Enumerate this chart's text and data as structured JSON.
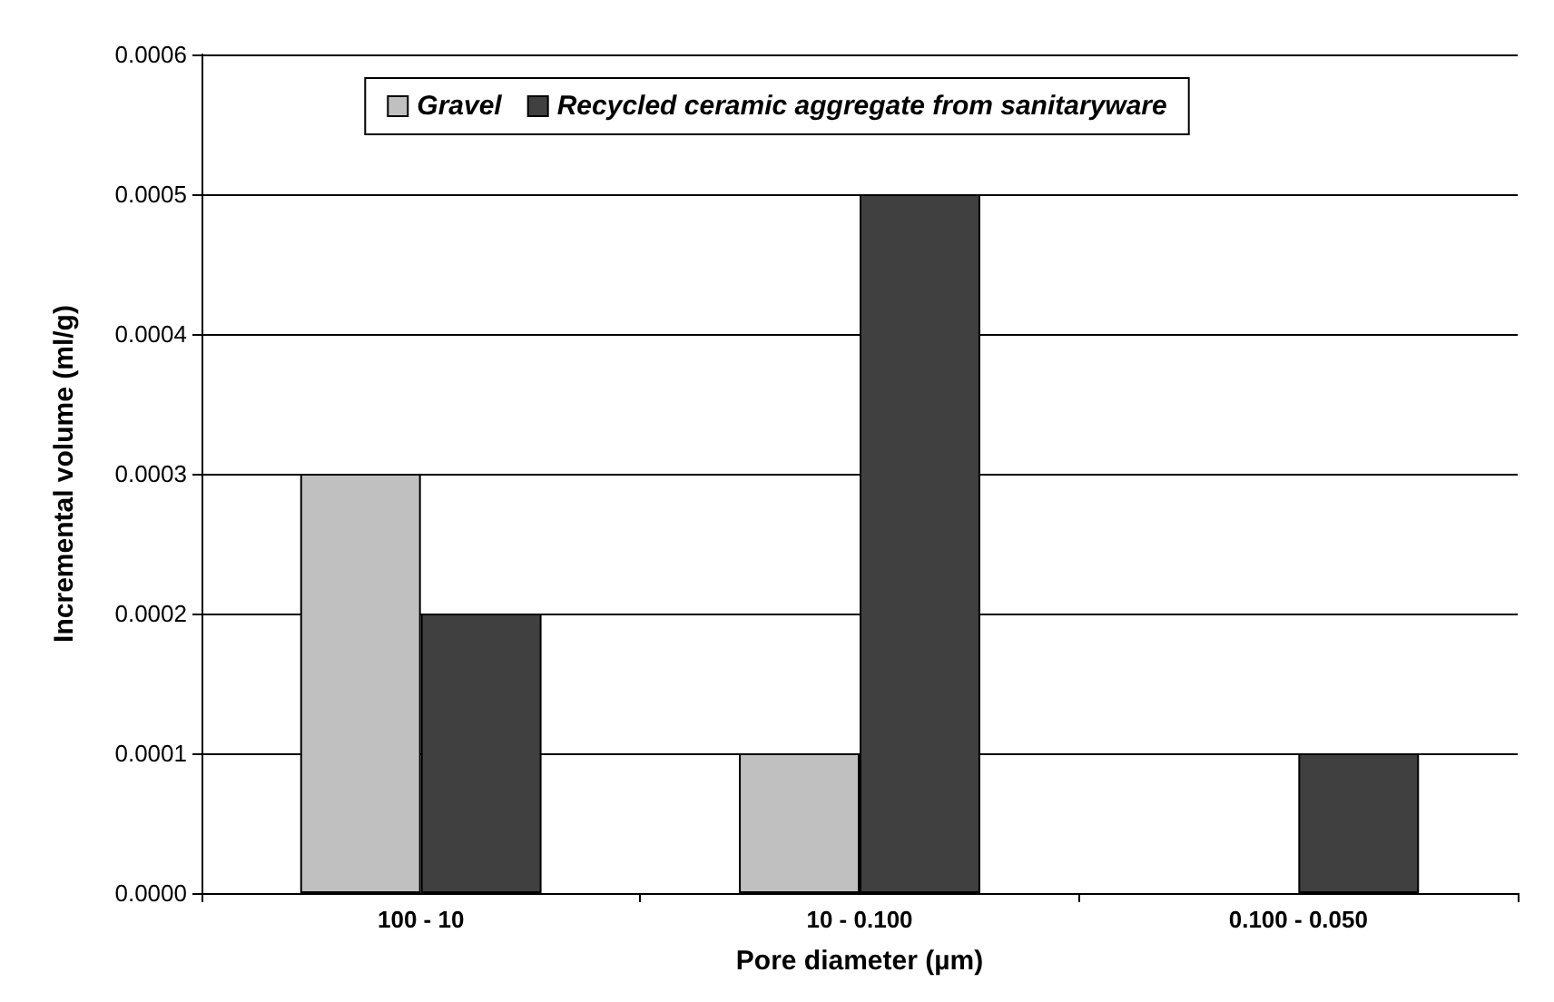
{
  "chart_data": {
    "type": "bar",
    "xlabel": "Pore diameter (µm)",
    "ylabel": "Incremental volume (ml/g)",
    "categories": [
      "100 - 10",
      "10 - 0.100",
      "0.100 - 0.050"
    ],
    "series": [
      {
        "name": "Gravel",
        "color": "#c0c0c0",
        "values": [
          0.0003,
          0.0001,
          null
        ]
      },
      {
        "name": "Recycled ceramic aggregate from sanitaryware",
        "color": "#404040",
        "values": [
          0.0002,
          0.0005,
          0.0001
        ]
      }
    ],
    "ylim": [
      0,
      0.0006
    ],
    "yticks": [
      {
        "value": 0,
        "label": "0.0000"
      },
      {
        "value": 0.0001,
        "label": "0.0001"
      },
      {
        "value": 0.0002,
        "label": "0.0002"
      },
      {
        "value": 0.0003,
        "label": "0.0003"
      },
      {
        "value": 0.0004,
        "label": "0.0004"
      },
      {
        "value": 0.0005,
        "label": "0.0005"
      },
      {
        "value": 0.0006,
        "label": "0.0006"
      }
    ],
    "grid": "y",
    "legend": "top"
  }
}
